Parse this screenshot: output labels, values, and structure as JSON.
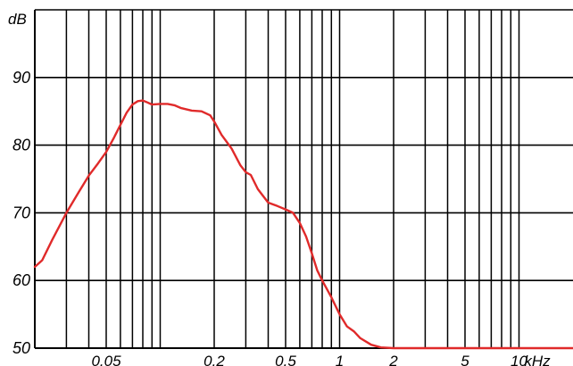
{
  "chart_data": {
    "type": "line",
    "title": "",
    "ylabel": "dB",
    "xlabel": "",
    "x_unit_label": "kHz",
    "x_scale": "log",
    "xlim": [
      0.02,
      20
    ],
    "ylim": [
      50,
      100
    ],
    "grid": true,
    "ytick_values": [
      50,
      60,
      70,
      80,
      90
    ],
    "ytick_labels": [
      "50",
      "60",
      "70",
      "80",
      "90"
    ],
    "xtick_values": [
      0.05,
      0.2,
      0.5,
      1,
      2,
      5,
      10
    ],
    "xtick_labels": [
      "0.05",
      "0.2",
      "0.5",
      "1",
      "2",
      "5",
      "10"
    ],
    "grid_x": [
      0.03,
      0.04,
      0.05,
      0.06,
      0.07,
      0.08,
      0.09,
      0.1,
      0.2,
      0.3,
      0.4,
      0.5,
      0.6,
      0.7,
      0.8,
      0.9,
      1,
      2,
      3,
      4,
      5,
      6,
      7,
      8,
      9,
      10
    ],
    "series": [
      {
        "name": "",
        "color": "#e02a2a",
        "x": [
          0.02,
          0.022,
          0.025,
          0.03,
          0.035,
          0.04,
          0.045,
          0.05,
          0.055,
          0.06,
          0.065,
          0.07,
          0.075,
          0.08,
          0.085,
          0.09,
          0.1,
          0.11,
          0.12,
          0.13,
          0.15,
          0.17,
          0.19,
          0.2,
          0.22,
          0.25,
          0.28,
          0.3,
          0.32,
          0.35,
          0.4,
          0.45,
          0.5,
          0.55,
          0.6,
          0.65,
          0.7,
          0.75,
          0.8,
          0.9,
          1.0,
          1.1,
          1.2,
          1.3,
          1.5,
          1.7,
          2,
          3,
          5,
          10,
          20
        ],
        "values": [
          62,
          63,
          66,
          70,
          73,
          75.5,
          77.3,
          79,
          81,
          83,
          84.8,
          86,
          86.5,
          86.6,
          86.3,
          86,
          86.1,
          86.1,
          85.9,
          85.5,
          85.1,
          85,
          84.4,
          83.5,
          81.5,
          79.5,
          77,
          76,
          75.6,
          73.5,
          71.5,
          71,
          70.5,
          70,
          68.5,
          66.5,
          64,
          61.5,
          60,
          57.5,
          55,
          53.2,
          52.5,
          51.5,
          50.5,
          50.1,
          50,
          50,
          50,
          50,
          50
        ]
      }
    ]
  }
}
